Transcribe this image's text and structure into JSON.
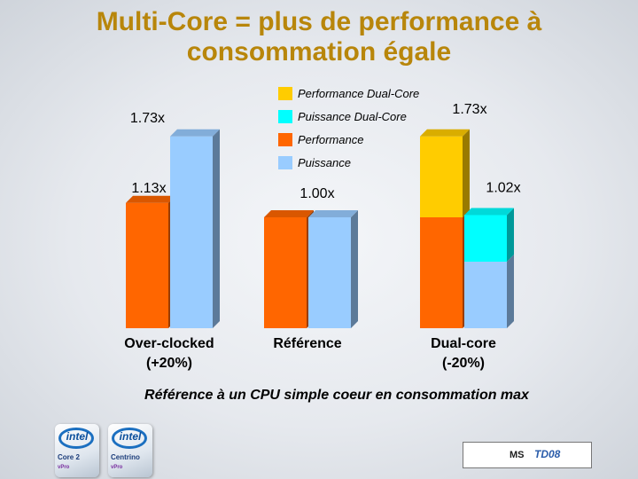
{
  "title": {
    "line1": "Multi-Core = plus de performance à",
    "line2": "consommation égale"
  },
  "footnote": "Référence à un CPU simple coeur en consommation max",
  "logos": {
    "intel1": {
      "brand": "intel",
      "product": "Core 2",
      "sub": "vPro"
    },
    "intel2": {
      "brand": "intel",
      "product": "Centrino",
      "sub": "vPro"
    },
    "ms": {
      "left": "MS",
      "right": "TD08"
    }
  },
  "colors": {
    "performance": "#ff6600",
    "puissance": "#99ccff",
    "performance_dual": "#ffcc00",
    "puissance_dual": "#00ffff"
  },
  "chart_data": {
    "type": "bar",
    "title": "Multi-Core = plus de performance à consommation égale",
    "categories": [
      "Over-clocked\n(+20%)",
      "Référence",
      "Dual-core\n(-20%)"
    ],
    "series": [
      {
        "name": "Performance",
        "stack": "perf",
        "values": [
          1.13,
          1.0,
          1.0
        ]
      },
      {
        "name": "Performance Dual-Core",
        "stack": "perf",
        "values": [
          0,
          0,
          0.73
        ]
      },
      {
        "name": "Puissance",
        "stack": "pow",
        "values": [
          1.73,
          1.0,
          0.6
        ]
      },
      {
        "name": "Puissance Dual-Core",
        "stack": "pow",
        "values": [
          0,
          0,
          0.42
        ]
      }
    ],
    "value_labels": [
      {
        "category": 0,
        "stack": "perf",
        "text": "1.13x"
      },
      {
        "category": 0,
        "stack": "pow",
        "text": "1.73x"
      },
      {
        "category": 1,
        "stack": "perf",
        "text": "1.00x"
      },
      {
        "category": 2,
        "stack": "perf",
        "text": "1.73x"
      },
      {
        "category": 2,
        "stack": "pow",
        "text": "1.02x"
      }
    ],
    "legend": [
      {
        "label": "Performance Dual-Core",
        "color": "#ffcc00"
      },
      {
        "label": "Puissance Dual-Core",
        "color": "#00ffff"
      },
      {
        "label": "Performance",
        "color": "#ff6600"
      },
      {
        "label": "Puissance",
        "color": "#99ccff"
      }
    ],
    "legend_position": "top-center",
    "ylim": [
      0,
      2.0
    ],
    "grid": false
  }
}
